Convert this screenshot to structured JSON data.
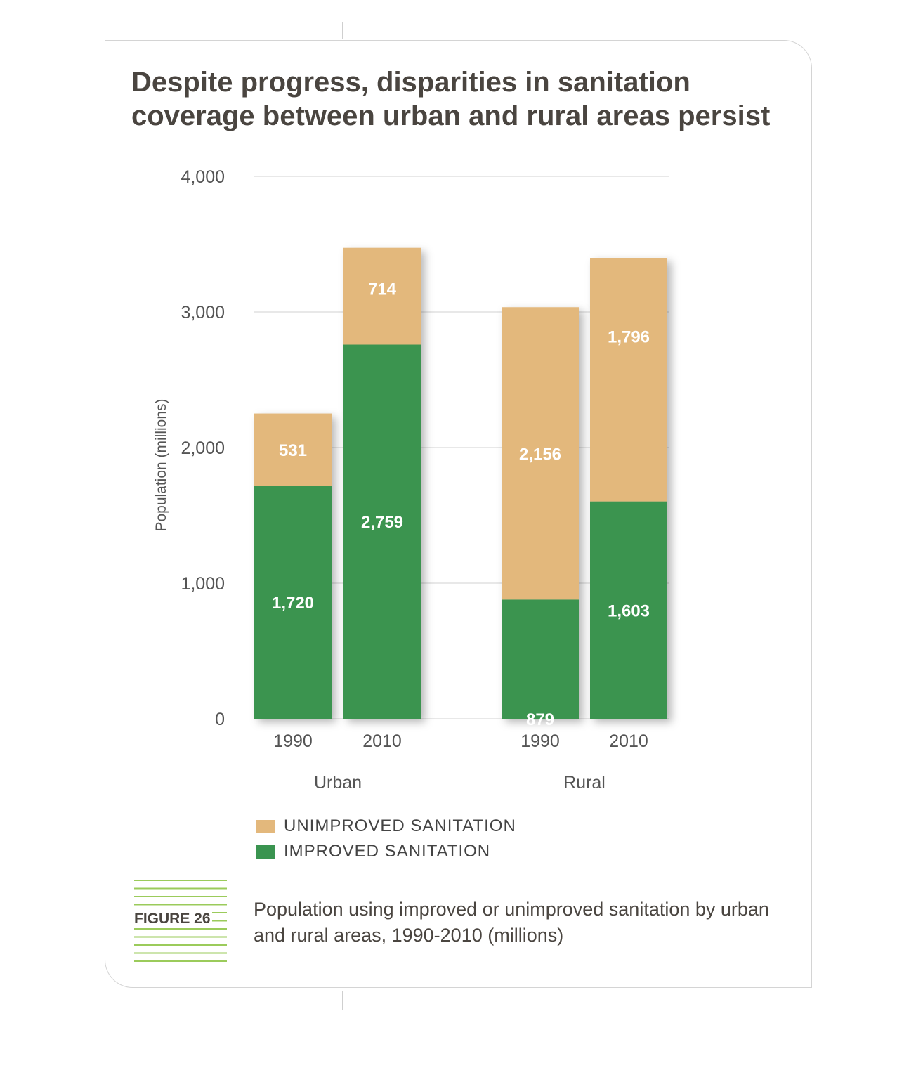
{
  "title": "Despite progress, disparities in sanitation coverage between urban and rural areas persist",
  "figure": {
    "label": "FIGURE 26",
    "caption": "Population using improved or unimproved sanitation by urban and rural areas, 1990-2010 (millions)"
  },
  "colors": {
    "improved": "#3a9450",
    "unimproved": "#e3b87c",
    "accent_stripes": "#9bcb5b",
    "text": "#4a4540"
  },
  "legend": [
    {
      "label": "UNIMPROVED SANITATION",
      "color": "#e3b87c"
    },
    {
      "label": "IMPROVED SANITATION",
      "color": "#3a9450"
    }
  ],
  "chart_data": {
    "type": "bar",
    "stacked": true,
    "ylabel": "Population (millions)",
    "ylim": [
      0,
      4000
    ],
    "yticks": [
      "0",
      "1,000",
      "2,000",
      "3,000",
      "4,000"
    ],
    "grid": true,
    "groups": [
      "Urban",
      "Rural"
    ],
    "categories": [
      "1990",
      "2010",
      "1990",
      "2010"
    ],
    "series": [
      {
        "name": "IMPROVED SANITATION",
        "values": [
          1720,
          2759,
          879,
          1603
        ],
        "labels": [
          "1,720",
          "2,759",
          "879",
          "1,603"
        ]
      },
      {
        "name": "UNIMPROVED SANITATION",
        "values": [
          531,
          714,
          2156,
          1796
        ],
        "labels": [
          "531",
          "714",
          "2,156",
          "1,796"
        ]
      }
    ]
  }
}
